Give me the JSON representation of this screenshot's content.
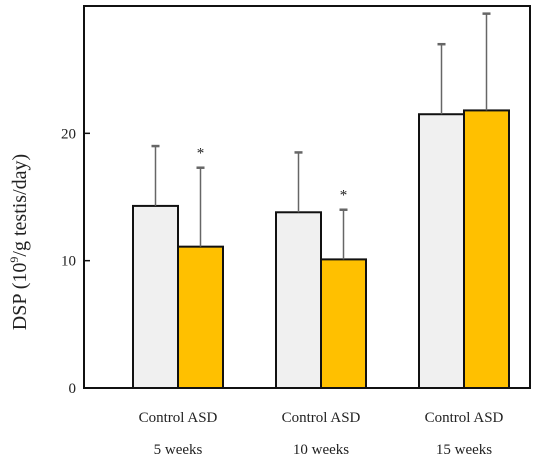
{
  "chart_data": {
    "type": "bar",
    "title": "",
    "xlabel": "",
    "ylabel_parts": [
      "DSP (10",
      "9",
      "/g testis/day)"
    ],
    "ylim": [
      0,
      30
    ],
    "yticks": [
      0,
      10,
      20
    ],
    "grid": false,
    "legend": "none",
    "groups": [
      "5 weeks",
      "10 weeks",
      "15 weeks"
    ],
    "series": [
      {
        "name": "Control",
        "color": "#f0f0f0",
        "values": [
          14.3,
          13.8,
          21.5
        ],
        "errors": [
          4.7,
          4.7,
          5.5
        ]
      },
      {
        "name": "ASD",
        "color": "#ffc000",
        "values": [
          11.1,
          10.1,
          21.8
        ],
        "errors": [
          6.2,
          3.9,
          7.6
        ]
      }
    ],
    "annotations": [
      {
        "group": 0,
        "series": 1,
        "text": "*"
      },
      {
        "group": 1,
        "series": 1,
        "text": "*"
      }
    ]
  }
}
